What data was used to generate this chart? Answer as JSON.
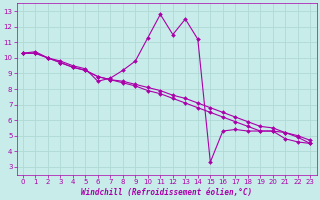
{
  "xlabel": "Windchill (Refroidissement éolien,°C)",
  "xlim": [
    -0.5,
    23.5
  ],
  "ylim": [
    2.5,
    13.5
  ],
  "xticks": [
    0,
    1,
    2,
    3,
    4,
    5,
    6,
    7,
    8,
    9,
    10,
    11,
    12,
    13,
    14,
    15,
    16,
    17,
    18,
    19,
    20,
    21,
    22,
    23
  ],
  "yticks": [
    3,
    4,
    5,
    6,
    7,
    8,
    9,
    10,
    11,
    12,
    13
  ],
  "bg_color": "#c8ecea",
  "line_color": "#aa00aa",
  "grid_color": "#b0d8d4",
  "tick_color": "#aa00aa",
  "label_color": "#aa00aa",
  "line1_x": [
    0,
    1,
    2,
    3,
    4,
    5,
    6,
    7,
    8,
    9,
    10,
    11,
    12,
    13,
    14,
    15,
    16,
    17,
    18,
    19,
    20,
    21,
    22,
    23
  ],
  "line1_y": [
    10.3,
    10.4,
    10.0,
    9.8,
    9.5,
    9.3,
    8.5,
    8.7,
    9.2,
    9.8,
    11.3,
    12.8,
    11.5,
    12.5,
    11.2,
    3.3,
    5.3,
    5.4,
    5.3,
    5.3,
    5.3,
    4.8,
    4.6,
    4.5
  ],
  "line2_x": [
    0,
    1,
    2,
    3,
    4,
    5,
    6,
    7,
    8,
    9,
    10,
    11,
    12,
    13,
    14,
    15,
    16,
    17,
    18,
    19,
    20,
    21,
    22,
    23
  ],
  "line2_y": [
    10.3,
    10.3,
    10.0,
    9.7,
    9.4,
    9.2,
    8.8,
    8.6,
    8.4,
    8.2,
    7.9,
    7.7,
    7.4,
    7.1,
    6.8,
    6.5,
    6.2,
    5.9,
    5.6,
    5.3,
    5.3,
    5.2,
    5.0,
    4.7
  ],
  "line3_x": [
    0,
    1,
    2,
    3,
    4,
    5,
    6,
    7,
    8,
    9,
    10,
    11,
    12,
    13,
    14,
    15,
    16,
    17,
    18,
    19,
    20,
    21,
    22,
    23
  ],
  "line3_y": [
    10.3,
    10.3,
    10.0,
    9.7,
    9.4,
    9.2,
    8.8,
    8.6,
    8.5,
    8.3,
    8.1,
    7.9,
    7.6,
    7.4,
    7.1,
    6.8,
    6.5,
    6.2,
    5.9,
    5.6,
    5.5,
    5.2,
    4.9,
    4.5
  ],
  "marker": "D",
  "marker_size": 2.0,
  "line_width": 0.8
}
